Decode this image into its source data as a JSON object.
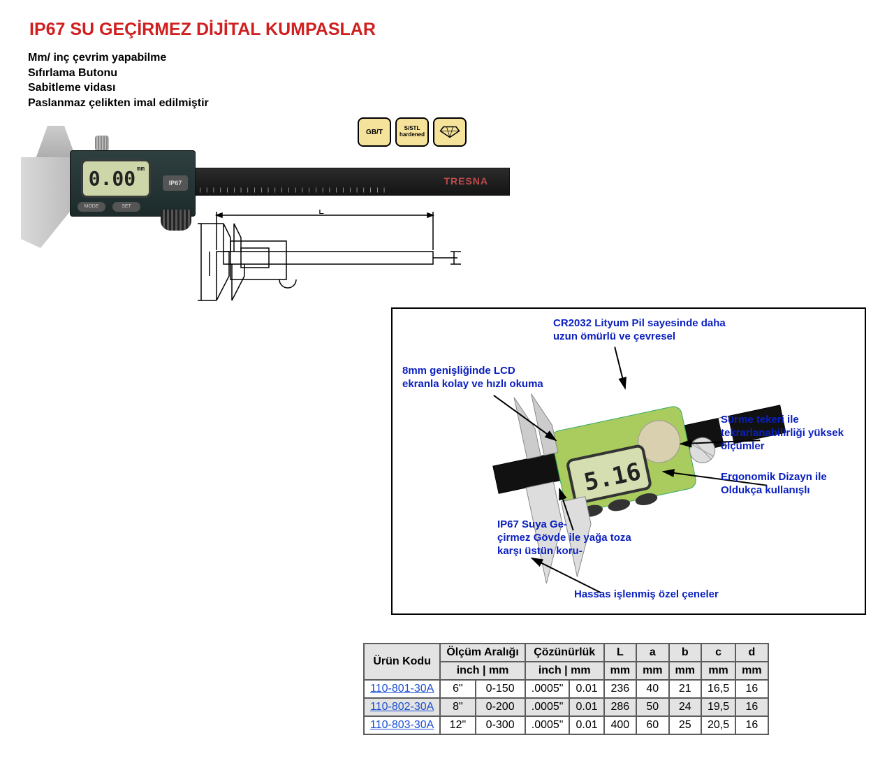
{
  "title": "IP67 SU GEÇİRMEZ DİJİTAL KUMPASLAR",
  "title_color": "#d01f1f",
  "features": [
    "Mm/ inç çevrim yapabilme",
    "Sıfırlama Butonu",
    "Sabitleme vidası",
    "Paslanmaz çelikten imal edilmiştir"
  ],
  "badges": {
    "items": [
      "GB/T",
      "S/STL\nhardened",
      "diamond"
    ],
    "bg": "#f5e29b",
    "border": "#000000"
  },
  "product_photo": {
    "lcd_reading": "0.00",
    "lcd_unit": "mm",
    "button1": "MODE",
    "button2": "SET",
    "ip_label": "IP67",
    "brand": "TRESNA",
    "bar_color": "#1a1a1a",
    "body_color": "#243838",
    "lcd_bg": "#cdd6a8"
  },
  "diagram": {
    "dim_label": "L",
    "stroke": "#000000"
  },
  "callout": {
    "border": "#000000",
    "annotation_color": "#0a1fbf",
    "lcd_reading": "5.16",
    "annotations": {
      "battery": "CR2032 Lityum Pil sayesinde daha uzun ömürlü ve çevresel",
      "lcd": "8mm genişliğinde LCD ekranla kolay ve hızlı okuma",
      "wheel": "Sürme tekeri ile tekrarlanabilirliği yüksek ölçümler",
      "ergo": "Ergonomik Dizayn ile Oldukça kullanışlı",
      "ip67": "IP67 Suya Ge-\nçirmez Gövde ile yağa toza karşı üstün koru-",
      "jaws": "Hassas işlenmiş özel çeneler"
    }
  },
  "table": {
    "type": "table",
    "header_bg": "#e3e3e3",
    "border_color": "#5c5c5c",
    "link_color": "#1b4fd1",
    "alt_row_bg": "#e3e3e3",
    "columns_top": [
      "Ürün Kodu",
      "Ölçüm Aralığı",
      "Çözünürlük",
      "L",
      "a",
      "b",
      "c",
      "d"
    ],
    "columns_sub": [
      "inch | mm",
      "inch | mm",
      "mm",
      "mm",
      "mm",
      "mm",
      "mm"
    ],
    "rows": [
      {
        "code": "110-801-30A",
        "inch": "6\"",
        "mm": "0-150",
        "res_inch": ".0005\"",
        "res_mm": "0.01",
        "L": "236",
        "a": "40",
        "b": "21",
        "c": "16,5",
        "d": "16",
        "alt": false
      },
      {
        "code": "110-802-30A",
        "inch": "8\"",
        "mm": "0-200",
        "res_inch": ".0005\"",
        "res_mm": "0.01",
        "L": "286",
        "a": "50",
        "b": "24",
        "c": "19,5",
        "d": "16",
        "alt": true
      },
      {
        "code": "110-803-30A",
        "inch": "12\"",
        "mm": "0-300",
        "res_inch": ".0005\"",
        "res_mm": "0.01",
        "L": "400",
        "a": "60",
        "b": "25",
        "c": "20,5",
        "d": "16",
        "alt": false
      }
    ]
  }
}
